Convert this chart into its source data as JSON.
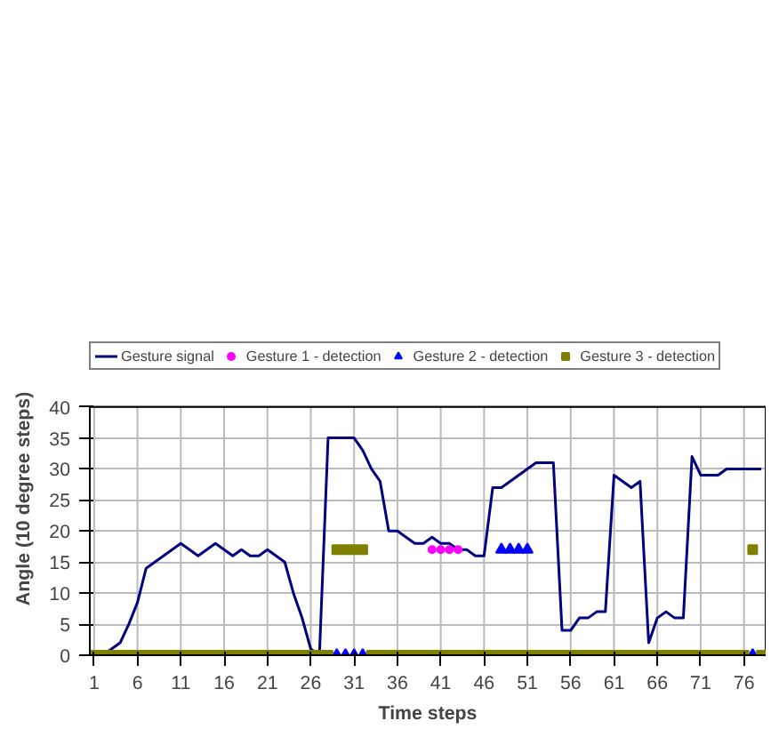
{
  "chart_data": {
    "type": "line",
    "xlabel": "Time steps",
    "ylabel": "Angle (10 degree steps)",
    "x": [
      1,
      2,
      3,
      4,
      5,
      6,
      7,
      8,
      9,
      10,
      11,
      12,
      13,
      14,
      15,
      16,
      17,
      18,
      19,
      20,
      21,
      22,
      23,
      24,
      25,
      26,
      27,
      28,
      29,
      30,
      31,
      32,
      33,
      34,
      35,
      36,
      37,
      38,
      39,
      40,
      41,
      42,
      43,
      44,
      45,
      46,
      47,
      48,
      49,
      50,
      51,
      52,
      53,
      54,
      55,
      56,
      57,
      58,
      59,
      60,
      61,
      62,
      63,
      64,
      65,
      66,
      67,
      68,
      69,
      70,
      71,
      72,
      73,
      74,
      75,
      76,
      77,
      78
    ],
    "series": [
      {
        "name": "Gesture signal",
        "color": "#000080",
        "marker": "none",
        "values": [
          0,
          0,
          1,
          2,
          5,
          8.5,
          14,
          15,
          16,
          17,
          18,
          17,
          16,
          17,
          18,
          17,
          16,
          17,
          16,
          16,
          17,
          16,
          15,
          10,
          6,
          1,
          0,
          35,
          35,
          35,
          35,
          33,
          30,
          28,
          20,
          20,
          19,
          18,
          18,
          19,
          18,
          18,
          17,
          17,
          16,
          16,
          27,
          27,
          28,
          29,
          30,
          31,
          31,
          31,
          4,
          4,
          6,
          6,
          7,
          7,
          29,
          28,
          27,
          28,
          2,
          6,
          7,
          6,
          6,
          32,
          29,
          29,
          29,
          30,
          30,
          30,
          30,
          30
        ]
      },
      {
        "name": "Gesture 1 - detection",
        "color": "#ff00ff",
        "type": "scatter",
        "marker": "circle",
        "values": [
          null,
          null,
          null,
          null,
          null,
          null,
          null,
          null,
          null,
          null,
          null,
          null,
          null,
          null,
          null,
          null,
          null,
          null,
          null,
          null,
          null,
          null,
          null,
          null,
          null,
          null,
          null,
          null,
          null,
          null,
          null,
          null,
          null,
          null,
          null,
          null,
          null,
          null,
          null,
          17,
          17,
          17,
          17,
          null,
          null,
          null,
          null,
          null,
          null,
          null,
          null,
          null,
          null,
          null,
          null,
          null,
          null,
          null,
          null,
          null,
          null,
          null,
          null,
          null,
          null,
          null,
          null,
          null,
          null,
          null,
          null,
          null,
          null,
          null,
          null,
          null,
          null,
          null
        ]
      },
      {
        "name": "Gesture 2 - detection",
        "color": "#0000ff",
        "type": "scatter",
        "marker": "triangle",
        "values": [
          null,
          null,
          null,
          null,
          null,
          null,
          null,
          null,
          null,
          null,
          null,
          null,
          null,
          null,
          null,
          null,
          null,
          null,
          null,
          null,
          null,
          null,
          null,
          null,
          null,
          null,
          null,
          null,
          0,
          0,
          0,
          0,
          null,
          null,
          null,
          null,
          null,
          null,
          null,
          null,
          null,
          null,
          null,
          null,
          null,
          null,
          null,
          17,
          17,
          17,
          17,
          null,
          null,
          null,
          null,
          null,
          null,
          null,
          null,
          null,
          null,
          null,
          null,
          null,
          null,
          null,
          null,
          null,
          null,
          null,
          null,
          null,
          null,
          null,
          null,
          null,
          0,
          null
        ]
      },
      {
        "name": "Gesture 3 - detection",
        "color": "#808000",
        "type": "scatter",
        "marker": "square",
        "values": [
          0,
          0,
          0,
          0,
          0,
          0,
          0,
          0,
          0,
          0,
          0,
          0,
          0,
          0,
          0,
          0,
          0,
          0,
          0,
          0,
          0,
          0,
          0,
          0,
          0,
          0,
          0,
          0,
          17,
          17,
          17,
          17,
          0,
          0,
          0,
          0,
          0,
          0,
          0,
          0,
          0,
          0,
          0,
          0,
          0,
          0,
          0,
          0,
          0,
          0,
          0,
          0,
          0,
          0,
          0,
          0,
          0,
          0,
          0,
          0,
          0,
          0,
          0,
          0,
          0,
          0,
          0,
          0,
          0,
          0,
          0,
          0,
          0,
          0,
          0,
          0,
          17,
          0
        ]
      }
    ],
    "xlim": [
      0.5,
      78.5
    ],
    "xticks": [
      1,
      6,
      11,
      16,
      21,
      26,
      31,
      36,
      41,
      46,
      51,
      56,
      61,
      66,
      71,
      76
    ],
    "ylim": [
      0,
      40
    ],
    "yticks": [
      0,
      5,
      10,
      15,
      20,
      25,
      30,
      35,
      40
    ],
    "grid": true,
    "legend": "top"
  }
}
